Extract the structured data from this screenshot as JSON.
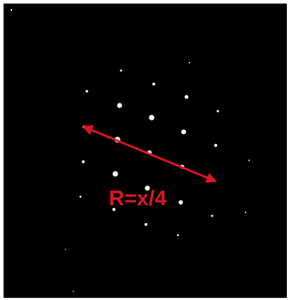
{
  "annotation": "R=x/4"
}
